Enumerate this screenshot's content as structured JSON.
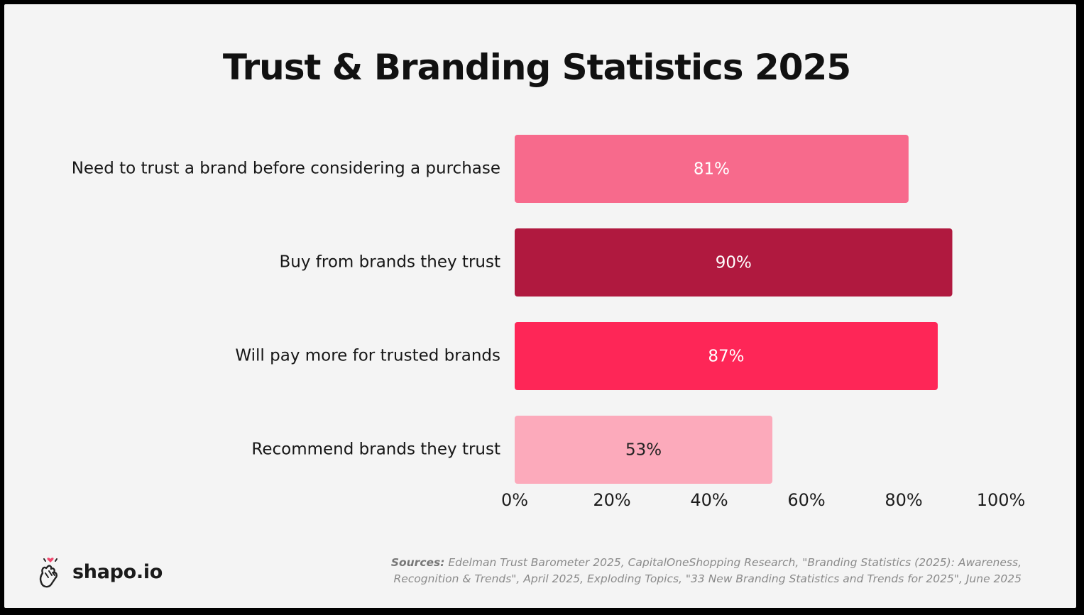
{
  "title": "Trust & Branding Statistics 2025",
  "chart_data": {
    "type": "bar",
    "orientation": "horizontal",
    "title": "Trust & Branding Statistics 2025",
    "categories": [
      "Need to trust a brand before considering a purchase",
      "Buy from brands they trust",
      "Will pay more for trusted brands",
      "Recommend brands they trust"
    ],
    "values": [
      81,
      90,
      87,
      53
    ],
    "value_labels": [
      "81%",
      "90%",
      "87%",
      "53%"
    ],
    "bar_colors": [
      "#f76a8c",
      "#b0193f",
      "#fe2657",
      "#fcaabb"
    ],
    "value_label_colors": [
      "#ffffff",
      "#ffffff",
      "#ffffff",
      "#222222"
    ],
    "xlim": [
      0,
      100
    ],
    "xticks": [
      0,
      20,
      40,
      60,
      80,
      100
    ],
    "xtick_labels": [
      "0%",
      "20%",
      "40%",
      "60%",
      "80%",
      "100%"
    ],
    "xlabel": "",
    "ylabel": "",
    "grid": false,
    "legend": "none"
  },
  "footer": {
    "brand": "shapo.io",
    "logo_icon": "heart-hands-icon",
    "sources_label": "Sources:",
    "sources_line1": "Edelman Trust Barometer 2025, CapitalOneShopping Research, \"Branding Statistics (2025): Awareness,",
    "sources_line2": "Recognition & Trends\", April 2025, Exploding Topics, \"33 New Branding Statistics and Trends for 2025\", June 2025"
  }
}
